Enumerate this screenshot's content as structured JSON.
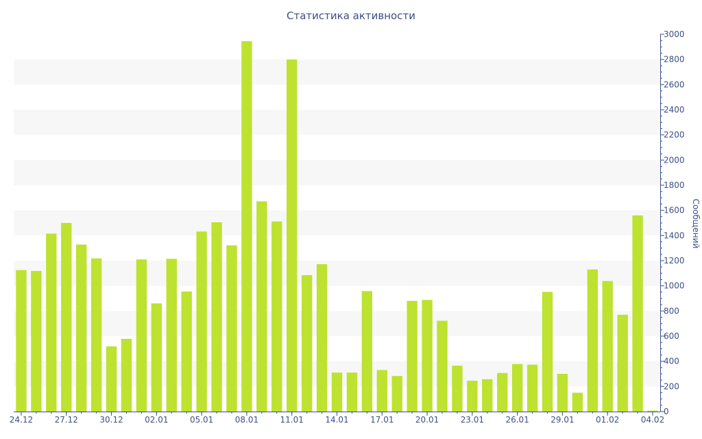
{
  "chart_data": {
    "type": "bar",
    "title": "Статистика активности",
    "xlabel": "",
    "ylabel": "Сообщений",
    "ylim": [
      0,
      3000
    ],
    "yticks": [
      0,
      200,
      400,
      600,
      800,
      1000,
      1200,
      1400,
      1600,
      1800,
      2000,
      2200,
      2400,
      2600,
      2800,
      3000
    ],
    "y_axis_side": "right",
    "grid": "alternating horizontal bands",
    "bar_color": "#bde22f",
    "band_color": "#f7f7f7",
    "axis_color": "#3d4e86",
    "x_tick_labels": [
      "24.12",
      "27.12",
      "30.12",
      "02.01",
      "05.01",
      "08.01",
      "11.01",
      "14.01",
      "17.01",
      "20.01",
      "23.01",
      "26.01",
      "29.01",
      "01.02",
      "04.02"
    ],
    "categories": [
      "24.12",
      "25.12",
      "26.12",
      "27.12",
      "28.12",
      "29.12",
      "30.12",
      "31.12",
      "01.01",
      "02.01",
      "03.01",
      "04.01",
      "05.01",
      "06.01",
      "07.01",
      "08.01",
      "09.01",
      "10.01",
      "11.01",
      "12.01",
      "13.01",
      "14.01",
      "15.01",
      "16.01",
      "17.01",
      "18.01",
      "19.01",
      "20.01",
      "21.01",
      "22.01",
      "23.01",
      "24.01",
      "25.01",
      "26.01",
      "27.01",
      "28.01",
      "29.01",
      "30.01",
      "31.01",
      "01.02",
      "02.02",
      "03.02",
      "04.02"
    ],
    "values": [
      1125,
      1118,
      1415,
      1500,
      1328,
      1218,
      518,
      578,
      1210,
      860,
      1215,
      955,
      1432,
      1505,
      1322,
      2945,
      1672,
      1512,
      2800,
      1085,
      1172,
      310,
      310,
      958,
      330,
      283,
      880,
      888,
      722,
      365,
      245,
      257,
      307,
      378,
      373,
      952,
      300,
      150,
      1130,
      1038,
      770,
      1560,
      8
    ]
  }
}
